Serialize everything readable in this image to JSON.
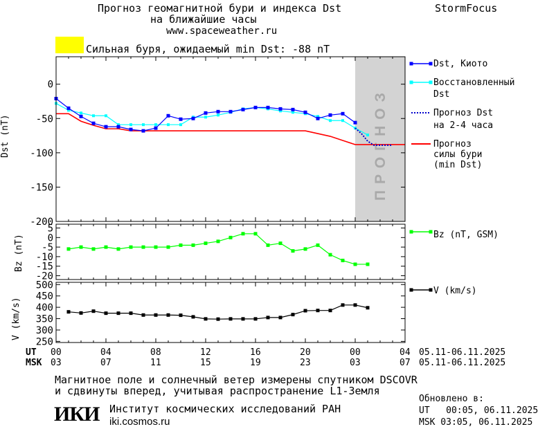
{
  "header": {
    "title_line1": "Прогноз геомагнитной бури и индекса Dst",
    "title_line2": "на ближайшие часы",
    "site": "www.spaceweather.ru",
    "brand": "StormFocus"
  },
  "status": {
    "text": "Сильная буря, ожидаемый min Dst: -88 nT",
    "indicator_color": "#ffff00"
  },
  "forecast_label": "ПРОГНОЗ",
  "legend": {
    "dst_kyoto": "Dst, Киото",
    "dst_restored_1": "Восстановленный",
    "dst_restored_2": "Dst",
    "dst_forecast_1": "Прогноз Dst",
    "dst_forecast_2": "на 2-4 часа",
    "storm_1": "Прогноз",
    "storm_2": "силы бури",
    "storm_3": "(min Dst)",
    "bz": "Bz (nT, GSM)",
    "v": "V (km/s)"
  },
  "time_axis": {
    "ut_label": "UT",
    "msk_label": "MSK",
    "ut_ticks": [
      "00",
      "04",
      "08",
      "12",
      "16",
      "20",
      "00",
      "04"
    ],
    "msk_ticks": [
      "03",
      "07",
      "11",
      "15",
      "19",
      "23",
      "03",
      "07"
    ],
    "ut_range": "05.11-06.11.2025",
    "msk_range": "05.11-06.11.2025"
  },
  "footer": {
    "note_line1": "Магнитное поле и солнечный ветер измерены спутником DSCOVR",
    "note_line2": "и сдвинуты вперед, учитывая распространение L1-Земля",
    "institute": "Институт космических исследований РАН",
    "institute_url": "iki.cosmos.ru",
    "logo_text": "ИКИ",
    "updated_label": "Обновлено в:",
    "updated_ut": "UT   00:05, 06.11.2025",
    "updated_msk": "MSK 03:05, 06.11.2025"
  },
  "chart_data": [
    {
      "type": "line",
      "panel": "dst",
      "ylabel": "Dst (nT)",
      "ylim": [
        -200,
        40
      ],
      "yticks": [
        0,
        -50,
        -100,
        -150,
        -200
      ],
      "xlim": [
        0,
        28
      ],
      "forecast_region": [
        24,
        28
      ],
      "colors": {
        "dst": "#0000ff",
        "restored": "#00ffff",
        "forecast": "#0000cc",
        "storm": "#ff0000",
        "forecast_region": "#d3d3d3"
      },
      "series": [
        {
          "name": "Dst, Киото",
          "x": [
            0,
            1,
            2,
            3,
            4,
            5,
            6,
            7,
            8,
            9,
            10,
            11,
            12,
            13,
            14,
            15,
            16,
            17,
            18,
            19,
            20,
            21,
            22,
            23,
            24
          ],
          "values": [
            -21,
            -35,
            -47,
            -57,
            -62,
            -62,
            -66,
            -68,
            -64,
            -46,
            -51,
            -50,
            -42,
            -40,
            -40,
            -37,
            -34,
            -34,
            -36,
            -37,
            -41,
            -50,
            -45,
            -43,
            -56
          ]
        },
        {
          "name": "Восстановленный Dst",
          "x": [
            0,
            1,
            2,
            3,
            4,
            5,
            6,
            7,
            8,
            9,
            10,
            11,
            12,
            13,
            14,
            15,
            16,
            17,
            18,
            19,
            20,
            21,
            22,
            23,
            24,
            25
          ],
          "values": [
            -28,
            -38,
            -42,
            -46,
            -46,
            -59,
            -59,
            -59,
            -59,
            -59,
            -59,
            -48,
            -48,
            -45,
            -41,
            -36,
            -34,
            -36,
            -39,
            -41,
            -43,
            -47,
            -53,
            -53,
            -64,
            -74
          ]
        },
        {
          "name": "Прогноз Dst на 2-4 часа",
          "x": [
            24,
            24.5,
            25,
            25.5,
            26,
            26.5,
            27
          ],
          "values": [
            -64,
            -72,
            -83,
            -89,
            -89,
            -89,
            -89
          ]
        },
        {
          "name": "Прогноз силы бури (min Dst)",
          "x": [
            0,
            1,
            2,
            3,
            4,
            5,
            6,
            7,
            8,
            9,
            10,
            11,
            12,
            13,
            14,
            15,
            16,
            17,
            18,
            19,
            20,
            20.5,
            22,
            23,
            24,
            25,
            26,
            27,
            28
          ],
          "values": [
            -43,
            -43,
            -54,
            -60,
            -65,
            -65,
            -68,
            -68,
            -68,
            -68,
            -68,
            -68,
            -68,
            -68,
            -68,
            -68,
            -68,
            -68,
            -68,
            -68,
            -68,
            -70,
            -76,
            -82,
            -88,
            -88,
            -88,
            -88,
            -88
          ]
        }
      ]
    },
    {
      "type": "line",
      "panel": "bz",
      "ylabel": "Bz (nT)",
      "ylim": [
        -22,
        7
      ],
      "yticks": [
        5,
        0,
        -5,
        -10,
        -15,
        -20
      ],
      "xlim": [
        0,
        28
      ],
      "colors": {
        "bz": "#00ff00"
      },
      "series": [
        {
          "name": "Bz (nT, GSM)",
          "x": [
            1,
            2,
            3,
            4,
            5,
            6,
            7,
            8,
            9,
            10,
            11,
            12,
            13,
            14,
            15,
            16,
            17,
            18,
            19,
            20,
            21,
            22,
            23,
            24,
            25
          ],
          "values": [
            -6,
            -5,
            -6,
            -5,
            -6,
            -5,
            -5,
            -5,
            -5,
            -4,
            -4,
            -3,
            -2,
            0,
            2,
            2,
            -4,
            -3,
            -7,
            -6,
            -4,
            -9,
            -12,
            -14,
            -14
          ]
        }
      ]
    },
    {
      "type": "line",
      "panel": "v",
      "ylabel": "V (km/s)",
      "ylim": [
        245,
        510
      ],
      "yticks": [
        500,
        450,
        400,
        350,
        300,
        250
      ],
      "xlim": [
        0,
        28
      ],
      "colors": {
        "v": "#000000"
      },
      "series": [
        {
          "name": "V (km/s)",
          "x": [
            1,
            2,
            3,
            4,
            5,
            6,
            7,
            8,
            9,
            10,
            11,
            12,
            13,
            14,
            15,
            16,
            17,
            18,
            19,
            20,
            21,
            22,
            23,
            24,
            25
          ],
          "values": [
            380,
            375,
            383,
            374,
            374,
            374,
            366,
            366,
            366,
            365,
            358,
            349,
            348,
            349,
            349,
            349,
            355,
            355,
            368,
            385,
            386,
            386,
            410,
            410,
            398
          ]
        }
      ]
    }
  ]
}
